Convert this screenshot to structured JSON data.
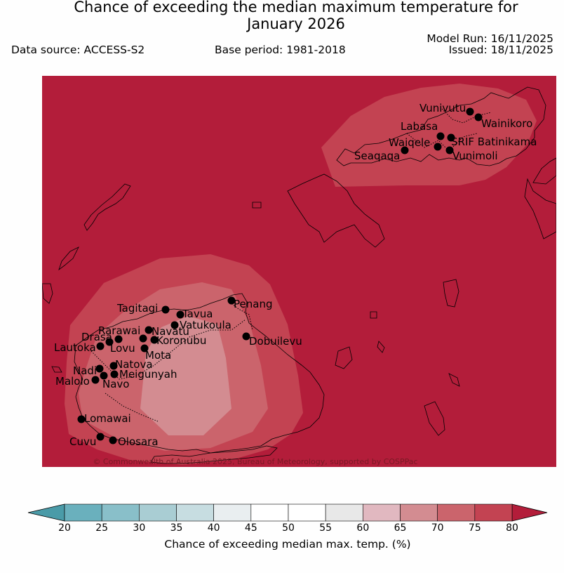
{
  "header": {
    "title_line1": "Chance of exceeding the median maximum temperature for",
    "title_line2": "January 2026",
    "data_source": "Data source: ACCESS-S2",
    "base_period": "Base period: 1981-2018",
    "model_run": "Model Run: 16/11/2025",
    "issued": "Issued: 18/11/2025"
  },
  "map": {
    "background_color": "#b31d3a",
    "copyright": "© Commonwealth of Australia 2025, Bureau of Meteorology, supported by COSPPac",
    "contour_levels": [
      {
        "range": "75-80",
        "color": "#c34352"
      },
      {
        "range": "70-75",
        "color": "#cb646c"
      },
      {
        "range": "65-70",
        "color": "#d38c91"
      }
    ],
    "places": [
      {
        "name": "Vunivutu"
      },
      {
        "name": "Wainikoro"
      },
      {
        "name": "Labasa"
      },
      {
        "name": "Waiqele"
      },
      {
        "name": "SRIF Batinikama"
      },
      {
        "name": "Seaqaqa"
      },
      {
        "name": "Vunimoli"
      },
      {
        "name": "Penang"
      },
      {
        "name": "Tagitagi"
      },
      {
        "name": "Tavua"
      },
      {
        "name": "Vatukoula"
      },
      {
        "name": "Rarawai"
      },
      {
        "name": "Navatu"
      },
      {
        "name": "Drasa"
      },
      {
        "name": "Koronubu"
      },
      {
        "name": "Lautoka"
      },
      {
        "name": "Lovu"
      },
      {
        "name": "Dobuilevu"
      },
      {
        "name": "Mota"
      },
      {
        "name": "Natova"
      },
      {
        "name": "Nadi"
      },
      {
        "name": "Meigunyah"
      },
      {
        "name": "Malolo"
      },
      {
        "name": "Navo"
      },
      {
        "name": "Lomawai"
      },
      {
        "name": "Cuvu"
      },
      {
        "name": "Olosara"
      }
    ]
  },
  "colorbar": {
    "title": "Chance of exceeding median max. temp. (%)",
    "ticks": [
      "20",
      "25",
      "30",
      "35",
      "40",
      "45",
      "50",
      "55",
      "60",
      "65",
      "70",
      "75",
      "80"
    ],
    "under_color": "#4a9ba8",
    "over_color": "#b31d3a",
    "bins": [
      {
        "range": "20-25",
        "color": "#6ab0bd"
      },
      {
        "range": "25-30",
        "color": "#89bfc9"
      },
      {
        "range": "30-35",
        "color": "#a9cdd3"
      },
      {
        "range": "35-40",
        "color": "#c7dde1"
      },
      {
        "range": "40-45",
        "color": "#e9eef0"
      },
      {
        "range": "45-50",
        "color": "#ffffff"
      },
      {
        "range": "50-55",
        "color": "#ffffff"
      },
      {
        "range": "55-60",
        "color": "#e8e8e8"
      },
      {
        "range": "60-65",
        "color": "#e1b8c0"
      },
      {
        "range": "65-70",
        "color": "#d38c91"
      },
      {
        "range": "70-75",
        "color": "#cb646c"
      },
      {
        "range": "75-80",
        "color": "#c34352"
      }
    ]
  }
}
